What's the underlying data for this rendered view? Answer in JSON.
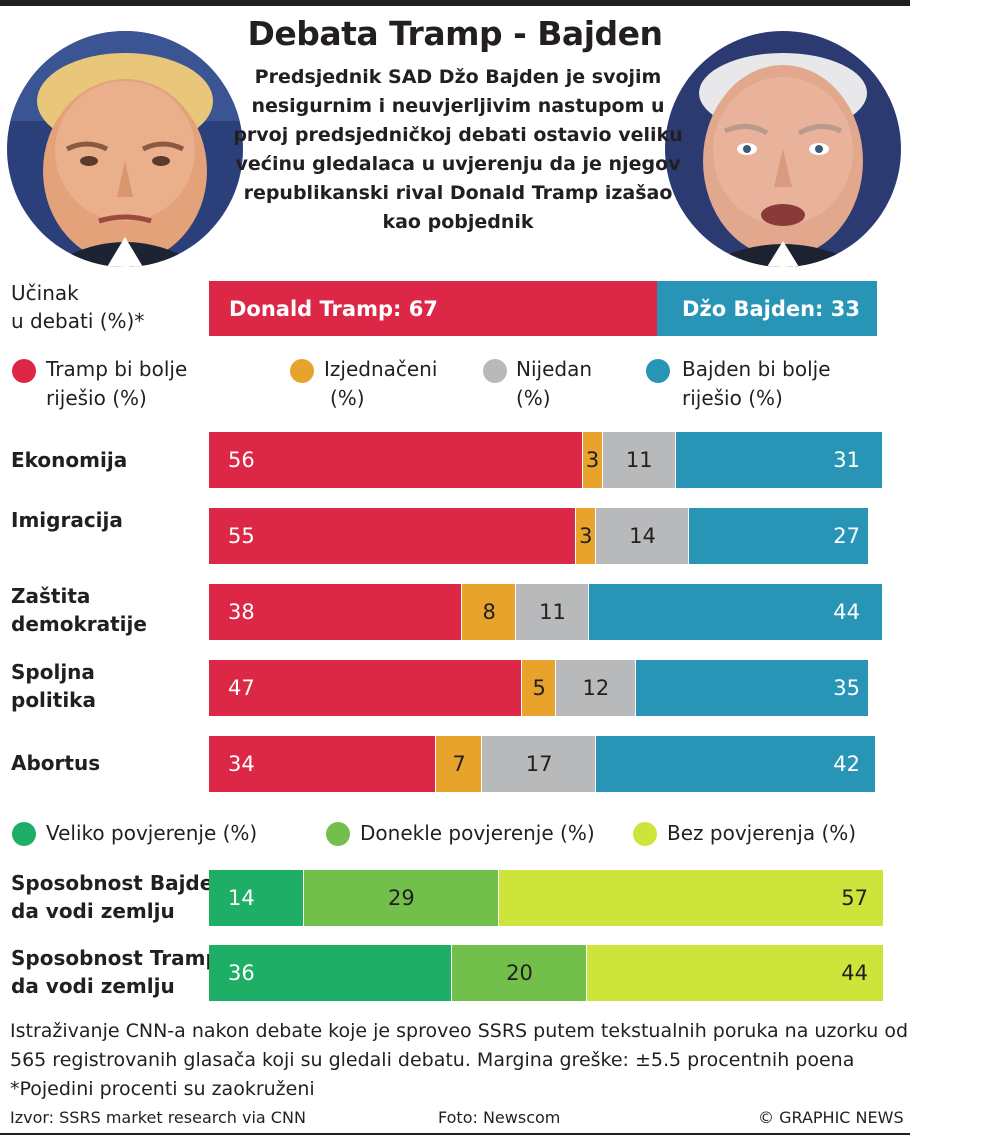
{
  "title": "Debata Tramp - Bajden",
  "subtitle": "Predsjednik SAD Džo Bajden je svojim nesigurnim i neuvjerljivim nastupom u prvoj predsjedničkoj debati ostavio veliku većinu gledalaca u uvjerenju da je njegov republikanski rival Donald Tramp izašao kao pobjednik",
  "colors": {
    "trump": "#dc2746",
    "tie": "#e8a32c",
    "neither": "#b7b9bb",
    "biden": "#2895b6",
    "great": "#1fae66",
    "some": "#72c04b",
    "none": "#cde43b"
  },
  "chart_data": [
    {
      "type": "bar",
      "orientation": "horizontal-stacked",
      "title": "Učinak u debati (%)*",
      "series": [
        {
          "name": "Donald Tramp",
          "label": "Donald Tramp: 67",
          "value": 67
        },
        {
          "name": "Džo Bajden",
          "label": "Džo Bajden: 33",
          "value": 33
        }
      ]
    },
    {
      "type": "bar",
      "orientation": "horizontal-stacked",
      "legend": [
        "Tramp bi bolje riješio (%)",
        "Izjednačeni (%)",
        "Nijedan (%)",
        "Bajden bi bolje riješio (%)"
      ],
      "categories": [
        "Ekonomija",
        "Imigracija",
        "Zaštita demokratije",
        "Spoljna politika",
        "Abortus"
      ],
      "series": [
        {
          "name": "Tramp bi bolje riješio (%)",
          "values": [
            56,
            55,
            38,
            47,
            34
          ]
        },
        {
          "name": "Izjednačeni (%)",
          "values": [
            3,
            3,
            8,
            5,
            7
          ]
        },
        {
          "name": "Nijedan (%)",
          "values": [
            11,
            14,
            11,
            12,
            17
          ]
        },
        {
          "name": "Bajden bi bolje riješio (%)",
          "values": [
            31,
            27,
            44,
            35,
            42
          ]
        }
      ]
    },
    {
      "type": "bar",
      "orientation": "horizontal-stacked",
      "legend": [
        "Veliko povjerenje (%)",
        "Donekle povjerenje (%)",
        "Bez povjerenja (%)"
      ],
      "categories": [
        "Sposobnost Bajdena da vodi zemlju",
        "Sposobnost Trampa da vodi zemlju"
      ],
      "series": [
        {
          "name": "Veliko povjerenje (%)",
          "values": [
            14,
            36
          ]
        },
        {
          "name": "Donekle povjerenje (%)",
          "values": [
            29,
            20
          ]
        },
        {
          "name": "Bez povjerenja (%)",
          "values": [
            57,
            44
          ]
        }
      ]
    }
  ],
  "labels": {
    "performance_line1": "Učinak",
    "performance_line2": "u debati (%)*",
    "legend1": {
      "trump_line1": "Tramp bi bolje",
      "trump_line2": "riješio (%)",
      "tie_line1": "Izjednačeni",
      "tie_line2": "(%)",
      "neither_line1": "Nijedan",
      "neither_line2": "(%)",
      "biden_line1": "Bajden bi bolje",
      "biden_line2": "riješio (%)"
    },
    "topics": [
      {
        "line1": "Ekonomija",
        "line2": ""
      },
      {
        "line1": "Imigracija",
        "line2": ""
      },
      {
        "line1": "Zaštita",
        "line2": "demokratije"
      },
      {
        "line1": "Spoljna",
        "line2": "politika"
      },
      {
        "line1": "Abortus",
        "line2": ""
      }
    ],
    "confidence": [
      {
        "line1": "Sposobnost Bajdena",
        "line2": "da vodi zemlju"
      },
      {
        "line1": "Sposobnost Trampa",
        "line2": "da vodi zemlju"
      }
    ]
  },
  "notes": {
    "survey_line1": "Istraživanje CNN-a nakon debate koje je sproveo SSRS putem tekstualnih poruka na uzorku od",
    "survey_line2": "565 registrovanih glasača koji su gledali debatu. Margina greške: ±5.5 procentnih poena",
    "rounding": "*Pojedini procenti su zaokruženi"
  },
  "footer": {
    "source": "Izvor: SSRS market research via CNN",
    "photo": "Foto: Newscom",
    "copyright": "© GRAPHIC NEWS"
  }
}
